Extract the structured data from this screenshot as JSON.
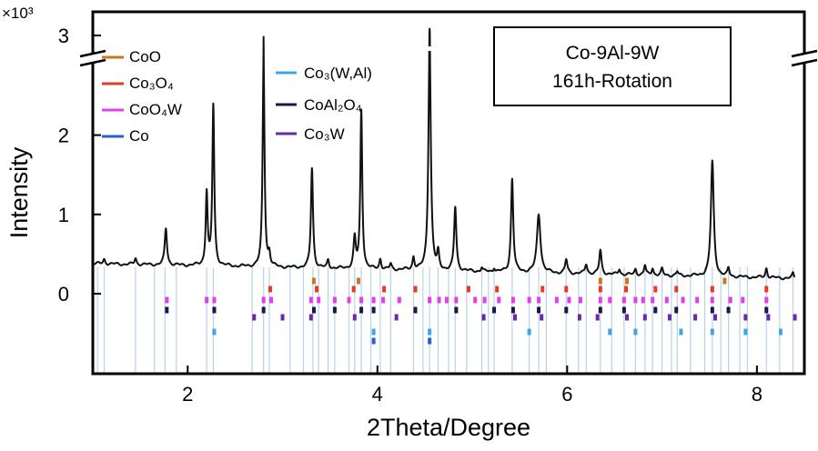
{
  "chart_data": {
    "type": "line",
    "title": "",
    "xlabel": "2Theta/Degree",
    "ylabel": "Intensity",
    "y_multiplier": "×10³",
    "xlim": [
      1.0,
      8.5
    ],
    "ylim": [
      -1.0,
      3.2
    ],
    "y_axis_break": [
      2.8,
      2.95
    ],
    "x_ticks": [
      2,
      4,
      6,
      8
    ],
    "y_ticks": [
      0,
      1,
      2,
      3
    ],
    "annotation": {
      "line1": "Co-9Al-9W",
      "line2": "161h-Rotation"
    },
    "legend": [
      {
        "key": "CoO",
        "label": "CoO",
        "color": "#c8781e"
      },
      {
        "key": "Co3O4",
        "label": "Co₃O₄",
        "color": "#e8392b"
      },
      {
        "key": "CoO4W",
        "label": "CoO₄W",
        "color": "#e040e8"
      },
      {
        "key": "Co",
        "label": "Co",
        "color": "#2a63c8"
      },
      {
        "key": "Co3WAl",
        "label": "Co₃(W,Al)",
        "color": "#3aa8e8"
      },
      {
        "key": "CoAl2O4",
        "label": "CoAl₂O₄",
        "color": "#141a4a"
      },
      {
        "key": "Co3W",
        "label": "Co₃W",
        "color": "#6a2aa8"
      }
    ],
    "baseline": 0.38,
    "peaks": [
      {
        "x": 1.12,
        "h": 0.06,
        "w": 0.012
      },
      {
        "x": 1.45,
        "h": 0.08,
        "w": 0.012
      },
      {
        "x": 1.77,
        "h": 0.46,
        "w": 0.014
      },
      {
        "x": 2.2,
        "h": 0.92,
        "w": 0.012
      },
      {
        "x": 2.27,
        "h": 2.02,
        "w": 0.012
      },
      {
        "x": 2.8,
        "h": 2.62,
        "w": 0.012
      },
      {
        "x": 2.86,
        "h": 0.15,
        "w": 0.012
      },
      {
        "x": 3.31,
        "h": 1.26,
        "w": 0.013
      },
      {
        "x": 3.48,
        "h": 0.1,
        "w": 0.012
      },
      {
        "x": 3.76,
        "h": 0.38,
        "w": 0.014
      },
      {
        "x": 3.83,
        "h": 2.0,
        "w": 0.012
      },
      {
        "x": 4.03,
        "h": 0.13,
        "w": 0.012
      },
      {
        "x": 4.14,
        "h": 0.07,
        "w": 0.012
      },
      {
        "x": 4.38,
        "h": 0.16,
        "w": 0.012
      },
      {
        "x": 4.55,
        "h": 2.9,
        "w": 0.015
      },
      {
        "x": 4.64,
        "h": 0.2,
        "w": 0.012
      },
      {
        "x": 4.82,
        "h": 0.8,
        "w": 0.014
      },
      {
        "x": 5.1,
        "h": 0.05,
        "w": 0.01
      },
      {
        "x": 5.23,
        "h": 0.05,
        "w": 0.01
      },
      {
        "x": 5.42,
        "h": 1.18,
        "w": 0.014
      },
      {
        "x": 5.7,
        "h": 0.74,
        "w": 0.022
      },
      {
        "x": 5.99,
        "h": 0.17,
        "w": 0.014
      },
      {
        "x": 6.2,
        "h": 0.12,
        "w": 0.014
      },
      {
        "x": 6.35,
        "h": 0.3,
        "w": 0.014
      },
      {
        "x": 6.55,
        "h": 0.07,
        "w": 0.012
      },
      {
        "x": 6.72,
        "h": 0.07,
        "w": 0.012
      },
      {
        "x": 6.82,
        "h": 0.12,
        "w": 0.012
      },
      {
        "x": 6.9,
        "h": 0.09,
        "w": 0.012
      },
      {
        "x": 7.0,
        "h": 0.08,
        "w": 0.012
      },
      {
        "x": 7.16,
        "h": 0.05,
        "w": 0.012
      },
      {
        "x": 7.53,
        "h": 1.45,
        "w": 0.018
      },
      {
        "x": 7.7,
        "h": 0.1,
        "w": 0.012
      },
      {
        "x": 8.1,
        "h": 0.12,
        "w": 0.012
      },
      {
        "x": 8.38,
        "h": 0.06,
        "w": 0.01
      }
    ],
    "reference_lines": [
      1.05,
      1.12,
      1.45,
      1.65,
      1.76,
      1.88,
      2.2,
      2.27,
      2.68,
      2.8,
      2.86,
      3.08,
      3.22,
      3.32,
      3.38,
      3.48,
      3.55,
      3.7,
      3.76,
      3.83,
      3.93,
      4.03,
      4.14,
      4.38,
      4.48,
      4.55,
      4.64,
      4.75,
      4.82,
      4.94,
      5.1,
      5.17,
      5.23,
      5.42,
      5.6,
      5.7,
      5.78,
      5.99,
      6.12,
      6.2,
      6.35,
      6.47,
      6.6,
      6.72,
      6.82,
      6.9,
      7.0,
      7.1,
      7.16,
      7.3,
      7.45,
      7.53,
      7.62,
      7.7,
      7.82,
      7.9,
      8.1,
      8.24,
      8.38
    ],
    "markers": {
      "CoO": [
        3.33,
        3.8,
        6.35,
        6.63,
        7.66
      ],
      "Co3O4": [
        2.87,
        3.36,
        3.75,
        4.07,
        4.4,
        4.96,
        5.26,
        5.74,
        5.99,
        6.35,
        6.62,
        6.93,
        7.15,
        7.53,
        8.1
      ],
      "CoO4W": [
        1.78,
        2.2,
        2.28,
        2.8,
        2.88,
        3.3,
        3.38,
        3.55,
        3.7,
        3.83,
        3.96,
        4.06,
        4.23,
        4.55,
        4.65,
        4.73,
        4.83,
        5.03,
        5.13,
        5.28,
        5.43,
        5.6,
        5.7,
        5.89,
        6.02,
        6.14,
        6.35,
        6.45,
        6.6,
        6.72,
        6.8,
        6.9,
        7.05,
        7.22,
        7.37,
        7.53,
        7.72,
        7.85,
        8.1
      ],
      "Co": [
        3.96,
        4.55
      ],
      "Co3WAl": [
        2.28,
        3.96,
        4.55,
        5.6,
        6.45,
        6.72,
        7.2,
        7.53,
        7.88,
        8.25
      ],
      "CoAl2O4": [
        1.78,
        2.28,
        2.8,
        3.33,
        3.55,
        3.83,
        3.96,
        4.4,
        4.83,
        5.23,
        5.43,
        5.7,
        5.99,
        6.35,
        6.6,
        6.93,
        7.15,
        7.53,
        7.7,
        8.1
      ],
      "Co3W": [
        2.7,
        3.0,
        3.3,
        3.76,
        4.2,
        5.12,
        5.45,
        5.73,
        6.13,
        6.32,
        6.63,
        6.82,
        7.08,
        7.35,
        7.56,
        7.88,
        8.12,
        8.4
      ]
    }
  }
}
